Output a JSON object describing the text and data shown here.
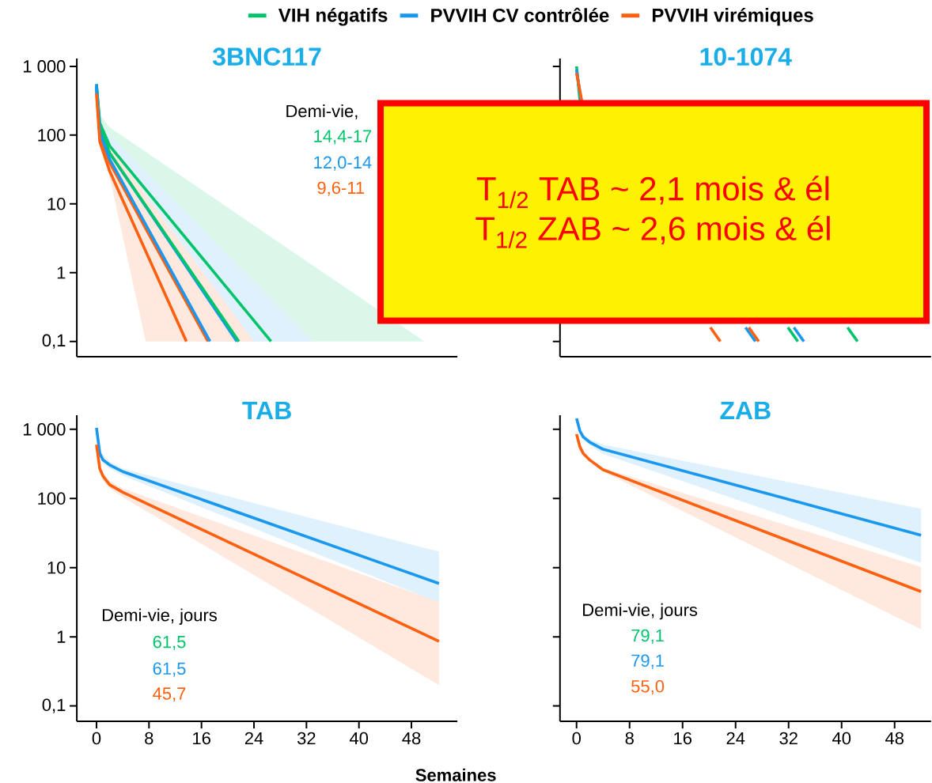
{
  "chart_data": [
    {
      "type": "line",
      "title": "3BNC117",
      "xlim": [
        -3,
        55
      ],
      "ylim": [
        0.06,
        1300
      ],
      "log": "y",
      "tick_labels": "y",
      "legend": "top",
      "yticks": [
        {
          "value": 1000,
          "label": "1 000"
        },
        100,
        10,
        1,
        {
          "value": 0.1,
          "label": "0,1"
        }
      ],
      "annotations": [
        "Demi-vie,",
        "14,4-17",
        "12,0-14",
        "9,6-11"
      ],
      "series": [
        {
          "name": "VIH négatifs",
          "color": "#00c46a",
          "x": [
            0,
            0.5,
            2,
            19,
            26.6,
            50
          ],
          "values": [
            550,
            150,
            70,
            0.76,
            0.1,
            null
          ],
          "lower": [
            450,
            110,
            45,
            0.1,
            0.1,
            0.1
          ],
          "upper": [
            700,
            200,
            130,
            10.3,
            3.3,
            0.1
          ]
        },
        {
          "name": "PVVIH CV contrôlée",
          "color": "#1a98f0",
          "x": [
            0,
            0.5,
            2,
            15,
            21.4,
            33
          ],
          "values": [
            550,
            120,
            55,
            0.8,
            0.1,
            null
          ],
          "lower": [
            450,
            90,
            35,
            0.1,
            0.1,
            0.1
          ],
          "upper": [
            650,
            160,
            100,
            5.5,
            1.3,
            0.1
          ]
        },
        {
          "name": "PVVIH virémiques",
          "color": "#ff6010",
          "x": [
            0,
            0.5,
            2,
            7.5,
            17,
            24
          ],
          "values": [
            450,
            100,
            40,
            4.4,
            0.1,
            null
          ],
          "lower": [
            350,
            70,
            25,
            0.1,
            0.1,
            0.1
          ],
          "upper": [
            500,
            130,
            70,
            13.6,
            0.8,
            0.1
          ]
        },
        {
          "color": "#00c46a",
          "x": [
            0,
            0.5,
            2,
            21.7
          ],
          "values": [
            500,
            130,
            55,
            0.1
          ]
        },
        {
          "color": "#1a98f0",
          "x": [
            0,
            0.5,
            2,
            17.3
          ],
          "values": [
            500,
            110,
            45,
            0.1
          ]
        },
        {
          "color": "#ff6010",
          "x": [
            0,
            0.5,
            2,
            13.7
          ],
          "values": [
            400,
            80,
            30,
            0.1
          ]
        }
      ]
    },
    {
      "type": "line",
      "title": "10-1074",
      "xlim": [
        -2.5,
        53.5
      ],
      "ylim": [
        0.06,
        1300
      ],
      "log": "y",
      "tick_labels": false,
      "yticks": [
        {
          "value": 1000,
          "label": null
        },
        {
          "value": 100,
          "label": null
        },
        {
          "value": 10,
          "label": null
        },
        {
          "value": 1,
          "label": null
        },
        {
          "value": 0.1,
          "label": null
        }
      ],
      "series": [
        {
          "color": "#00c46a",
          "x": [
            0,
            0.5,
            5,
            31.9,
            33.4
          ],
          "values": [
            1000,
            320,
            null,
            0.16,
            0.1
          ]
        },
        {
          "color": "#1a98f0",
          "x": [
            0,
            0.7,
            5,
            25.5,
            27
          ],
          "values": [
            900,
            310,
            null,
            0.16,
            0.1
          ]
        },
        {
          "color": "#ff6010",
          "x": [
            0,
            0.8,
            5,
            20.2,
            21.7
          ],
          "values": [
            800,
            310,
            null,
            0.16,
            0.1
          ]
        },
        {
          "color": "#00c46a",
          "x": [
            40.9,
            42.4
          ],
          "values": [
            0.16,
            0.1
          ]
        },
        {
          "color": "#1a98f0",
          "x": [
            32.8,
            34.3
          ],
          "values": [
            0.16,
            0.1
          ]
        },
        {
          "color": "#ff6010",
          "x": [
            26,
            27.5
          ],
          "values": [
            0.16,
            0.1
          ]
        }
      ]
    },
    {
      "type": "line",
      "title": "TAB",
      "xlabel": "Semaines",
      "xlim": [
        -3,
        55
      ],
      "ylim": [
        0.06,
        1600
      ],
      "log": "y",
      "xticks": [
        0,
        8,
        16,
        24,
        32,
        40,
        48
      ],
      "yticks": [
        {
          "value": 1000,
          "label": "1 000"
        },
        100,
        10,
        1,
        {
          "value": 0.1,
          "label": "0,1"
        }
      ],
      "annotations": [
        "Demi-vie, jours",
        "61,5",
        "61,5",
        "45,7"
      ],
      "series": [
        {
          "color": "#1a98f0",
          "x": [
            0,
            0.5,
            1,
            2,
            4,
            52.2
          ],
          "values": [
            1050,
            450,
            360,
            306,
            245,
            5.9
          ],
          "lower": [
            800,
            400,
            320,
            270,
            215,
            3.1
          ],
          "upper": [
            1500,
            550,
            420,
            340,
            270,
            17
          ]
        },
        {
          "color": "#ff6010",
          "x": [
            0,
            0.5,
            1,
            2,
            4,
            52.2
          ],
          "values": [
            600,
            270,
            210,
            158,
            123,
            0.86
          ],
          "lower": [
            550,
            240,
            180,
            140,
            105,
            0.2
          ],
          "upper": [
            650,
            300,
            230,
            180,
            140,
            3.2
          ]
        }
      ]
    },
    {
      "type": "line",
      "title": "ZAB",
      "xlim": [
        -2.5,
        53.5
      ],
      "ylim": [
        0.06,
        1600
      ],
      "log": "y",
      "tick_labels": "x",
      "xticks": [
        0,
        8,
        16,
        24,
        32,
        40,
        48
      ],
      "yticks": [
        {
          "value": 1000,
          "label": null
        },
        {
          "value": 100,
          "label": null
        },
        {
          "value": 10,
          "label": null
        },
        {
          "value": 1,
          "label": null
        },
        {
          "value": 0.1,
          "label": null
        }
      ],
      "annotations": [
        "Demi-vie, jours",
        "79,1",
        "79,1",
        "55,0"
      ],
      "series": [
        {
          "color": "#1a98f0",
          "x": [
            0,
            0.5,
            1,
            2,
            4,
            52
          ],
          "values": [
            1440,
            950,
            780,
            652,
            515,
            29.4
          ],
          "lower": [
            1300,
            850,
            700,
            590,
            440,
            11.8
          ],
          "upper": [
            1500,
            1050,
            850,
            720,
            600,
            71
          ]
        },
        {
          "color": "#ff6010",
          "x": [
            0,
            0.5,
            1,
            2,
            4,
            52
          ],
          "values": [
            853,
            560,
            450,
            360,
            260,
            4.5
          ],
          "lower": [
            830,
            540,
            430,
            345,
            245,
            1.28
          ],
          "upper": [
            870,
            580,
            470,
            375,
            275,
            10.2
          ]
        }
      ]
    },
    {
      "type": "other",
      "annotations": [
        "T$_{1/2}$ TAB ~ 2,1 mois & él",
        "T$_{1/2}$ ZAB ~ 2,6 mois & él"
      ]
    }
  ]
}
